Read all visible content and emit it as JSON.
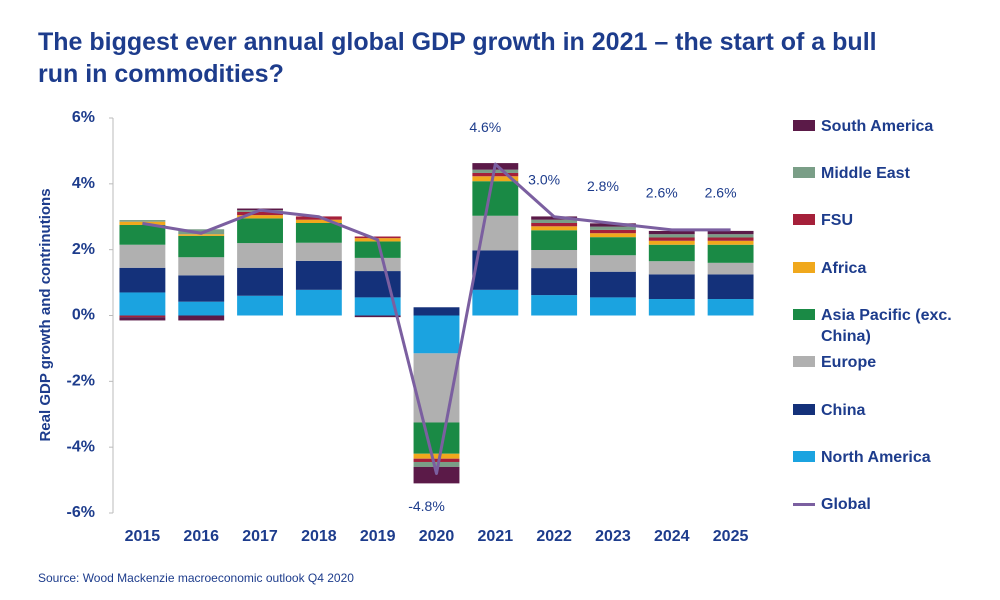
{
  "chart_data": {
    "type": "stacked-bar-line",
    "title": "The biggest ever annual global GDP growth in 2021 – the start of a bull run in commodities?",
    "y_label": "Real GDP growth and contrinutions",
    "source": "Source: Wood Mackenzie macroeconomic outlook Q4 2020",
    "categories": [
      "2015",
      "2016",
      "2017",
      "2018",
      "2019",
      "2020",
      "2021",
      "2022",
      "2023",
      "2024",
      "2025"
    ],
    "ylim": [
      -6,
      6
    ],
    "yticks": [
      {
        "value": -6,
        "label": "-6%"
      },
      {
        "value": -4,
        "label": "-4%"
      },
      {
        "value": -2,
        "label": "-2%"
      },
      {
        "value": 0,
        "label": "0%"
      },
      {
        "value": 2,
        "label": "2%"
      },
      {
        "value": 4,
        "label": "4%"
      },
      {
        "value": 6,
        "label": "6%"
      }
    ],
    "series": [
      {
        "name": "North America",
        "color": "#1ba3e0",
        "values": [
          0.7,
          0.42,
          0.6,
          0.78,
          0.55,
          -1.15,
          0.78,
          0.62,
          0.55,
          0.5,
          0.5
        ]
      },
      {
        "name": "China",
        "color": "#14317a",
        "values": [
          0.75,
          0.8,
          0.85,
          0.88,
          0.8,
          0.25,
          1.2,
          0.82,
          0.78,
          0.75,
          0.75
        ]
      },
      {
        "name": "Europe",
        "color": "#b0b0b0",
        "values": [
          0.7,
          0.55,
          0.75,
          0.55,
          0.4,
          -2.1,
          1.05,
          0.55,
          0.5,
          0.4,
          0.35
        ]
      },
      {
        "name": "Asia Pacific (exc. China)",
        "color": "#1a8a45",
        "values": [
          0.6,
          0.65,
          0.75,
          0.6,
          0.5,
          -0.95,
          1.05,
          0.6,
          0.55,
          0.5,
          0.55
        ]
      },
      {
        "name": "Africa",
        "color": "#f0a81c",
        "values": [
          0.1,
          0.05,
          0.1,
          0.1,
          0.1,
          -0.15,
          0.15,
          0.12,
          0.12,
          0.12,
          0.12
        ]
      },
      {
        "name": "FSU",
        "color": "#a5203a",
        "values": [
          -0.05,
          0.0,
          0.1,
          0.1,
          0.05,
          -0.1,
          0.1,
          0.1,
          0.1,
          0.1,
          0.1
        ]
      },
      {
        "name": "Middle East",
        "color": "#7a9e87",
        "values": [
          0.05,
          0.15,
          0.05,
          0.0,
          0.0,
          -0.15,
          0.1,
          0.1,
          0.1,
          0.1,
          0.1
        ]
      },
      {
        "name": "South America",
        "color": "#5b1a48",
        "values": [
          -0.1,
          -0.15,
          0.05,
          0.0,
          -0.05,
          -0.5,
          0.2,
          0.1,
          0.1,
          0.1,
          0.1
        ]
      }
    ],
    "line": {
      "name": "Global",
      "color": "#7b5fa0",
      "values": [
        2.8,
        2.5,
        3.2,
        3.0,
        2.3,
        -4.8,
        4.6,
        3.0,
        2.8,
        2.6,
        2.6
      ],
      "value_labels": [
        null,
        null,
        null,
        null,
        null,
        "-4.8%",
        "4.6%",
        "3.0%",
        "2.8%",
        "2.6%",
        "2.6%"
      ]
    }
  }
}
